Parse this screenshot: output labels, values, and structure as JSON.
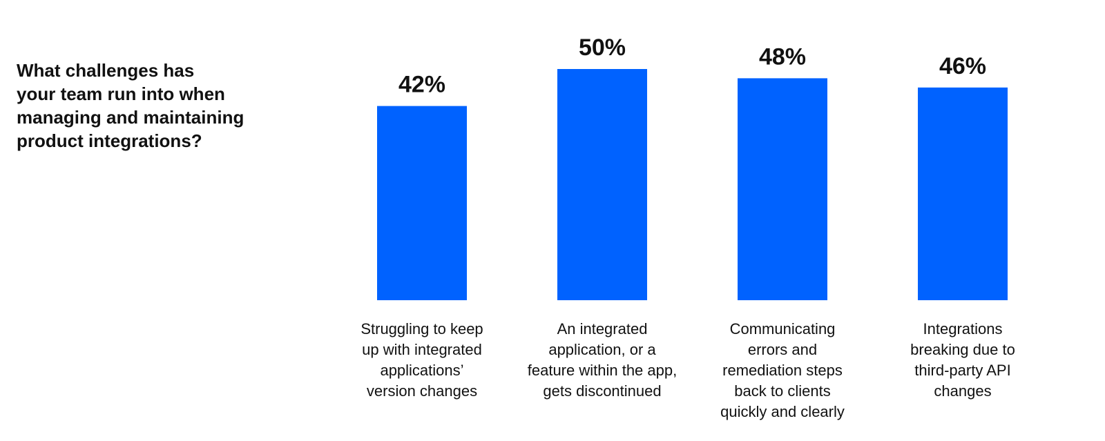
{
  "chart_data": {
    "type": "bar",
    "title": "What challenges has\nyour team run into when\nmanaging and maintaining\nproduct integrations?",
    "categories": [
      "Struggling to keep\nup with integrated\napplications’\nversion changes",
      "An integrated\napplication, or a\nfeature within the app,\ngets discontinued",
      "Communicating\nerrors and\nremediation steps\nback to clients\nquickly and clearly",
      "Integrations\nbreaking due to\nthird-party API\nchanges"
    ],
    "values": [
      42,
      50,
      48,
      46
    ],
    "value_labels": [
      "42%",
      "50%",
      "48%",
      "46%"
    ],
    "unit": "%",
    "ylim": [
      0,
      100
    ],
    "grid": false,
    "bar_color": "#0062FF"
  }
}
